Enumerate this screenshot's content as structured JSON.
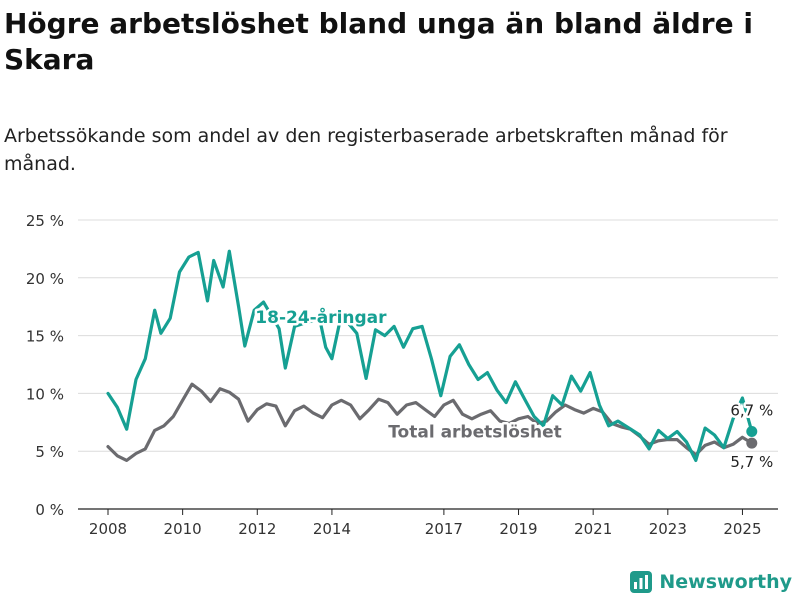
{
  "title": "Högre arbetslöshet bland unga än bland äldre i Skara",
  "subtitle": "Arbetssökande som andel av den registerbaserade arbetskraften månad för månad.",
  "brand": {
    "name": "Newsworthy",
    "icon": "newsworthy-logo-icon"
  },
  "colors": {
    "youth": "#16a093",
    "total": "#6b6b6f",
    "grid": "#dcdcdc",
    "axis": "#222222"
  },
  "chart_data": {
    "type": "line",
    "title": "Högre arbetslöshet bland unga än bland äldre i Skara",
    "subtitle": "Arbetssökande som andel av den registerbaserade arbetskraften månad för månad.",
    "xlim": [
      "2008-01",
      "2025-06"
    ],
    "ylim": [
      0,
      25
    ],
    "yticks": [
      0,
      5,
      10,
      15,
      20,
      25
    ],
    "ytick_labels": [
      "0 %",
      "5 %",
      "10 %",
      "15 %",
      "20 %",
      "25 %"
    ],
    "xticks": [
      "2008",
      "2010",
      "2012",
      "2014",
      "2017",
      "2019",
      "2021",
      "2023",
      "2025"
    ],
    "grid": true,
    "legend": "inline labels",
    "series": [
      {
        "name": "18-24-åringar",
        "color": "#16a093",
        "end_label": "6,7 %",
        "points": [
          [
            "2008-01",
            10.0
          ],
          [
            "2008-04",
            8.8
          ],
          [
            "2008-07",
            6.9
          ],
          [
            "2008-10",
            11.2
          ],
          [
            "2009-01",
            13.0
          ],
          [
            "2009-04",
            17.2
          ],
          [
            "2009-06",
            15.2
          ],
          [
            "2009-09",
            16.5
          ],
          [
            "2009-12",
            20.5
          ],
          [
            "2010-03",
            21.8
          ],
          [
            "2010-06",
            22.2
          ],
          [
            "2010-09",
            18.0
          ],
          [
            "2010-11",
            21.5
          ],
          [
            "2011-02",
            19.2
          ],
          [
            "2011-04",
            22.3
          ],
          [
            "2011-07",
            17.5
          ],
          [
            "2011-09",
            14.1
          ],
          [
            "2011-12",
            17.2
          ],
          [
            "2012-03",
            17.9
          ],
          [
            "2012-08",
            15.6
          ],
          [
            "2012-10",
            12.2
          ],
          [
            "2013-01",
            15.8
          ],
          [
            "2013-09",
            16.5
          ],
          [
            "2013-11",
            14.0
          ],
          [
            "2014-01",
            13.0
          ],
          [
            "2014-04",
            16.8
          ],
          [
            "2014-09",
            15.2
          ],
          [
            "2014-12",
            11.3
          ],
          [
            "2015-03",
            15.5
          ],
          [
            "2015-06",
            15.0
          ],
          [
            "2015-09",
            15.8
          ],
          [
            "2015-12",
            14.0
          ],
          [
            "2016-03",
            15.6
          ],
          [
            "2016-06",
            15.8
          ],
          [
            "2016-09",
            13.0
          ],
          [
            "2016-12",
            9.8
          ],
          [
            "2017-03",
            13.2
          ],
          [
            "2017-06",
            14.2
          ],
          [
            "2017-09",
            12.5
          ],
          [
            "2017-12",
            11.2
          ],
          [
            "2018-03",
            11.8
          ],
          [
            "2018-06",
            10.3
          ],
          [
            "2018-09",
            9.2
          ],
          [
            "2018-12",
            11.0
          ],
          [
            "2019-03",
            9.5
          ],
          [
            "2019-06",
            8.0
          ],
          [
            "2019-09",
            7.2
          ],
          [
            "2019-12",
            9.8
          ],
          [
            "2020-03",
            9.0
          ],
          [
            "2020-06",
            11.5
          ],
          [
            "2020-09",
            10.2
          ],
          [
            "2020-12",
            11.8
          ],
          [
            "2021-03",
            9.0
          ],
          [
            "2021-06",
            7.2
          ],
          [
            "2021-09",
            7.6
          ],
          [
            "2022-04",
            6.4
          ],
          [
            "2022-07",
            5.2
          ],
          [
            "2022-10",
            6.8
          ],
          [
            "2023-01",
            6.1
          ],
          [
            "2023-04",
            6.7
          ],
          [
            "2023-07",
            5.8
          ],
          [
            "2023-10",
            4.2
          ],
          [
            "2024-01",
            7.0
          ],
          [
            "2024-04",
            6.4
          ],
          [
            "2024-07",
            5.3
          ],
          [
            "2024-10",
            7.8
          ],
          [
            "2025-01",
            9.6
          ],
          [
            "2025-04",
            6.7
          ]
        ]
      },
      {
        "name": "Total arbetslöshet",
        "color": "#6b6b6f",
        "end_label": "5,7 %",
        "points": [
          [
            "2008-01",
            5.4
          ],
          [
            "2008-04",
            4.6
          ],
          [
            "2008-07",
            4.2
          ],
          [
            "2008-10",
            4.8
          ],
          [
            "2009-01",
            5.2
          ],
          [
            "2009-04",
            6.8
          ],
          [
            "2009-07",
            7.2
          ],
          [
            "2009-10",
            8.0
          ],
          [
            "2010-01",
            9.4
          ],
          [
            "2010-04",
            10.8
          ],
          [
            "2010-07",
            10.2
          ],
          [
            "2010-10",
            9.3
          ],
          [
            "2011-01",
            10.4
          ],
          [
            "2011-04",
            10.1
          ],
          [
            "2011-07",
            9.5
          ],
          [
            "2011-10",
            7.6
          ],
          [
            "2012-01",
            8.6
          ],
          [
            "2012-04",
            9.1
          ],
          [
            "2012-07",
            8.9
          ],
          [
            "2012-10",
            7.2
          ],
          [
            "2013-01",
            8.5
          ],
          [
            "2013-04",
            8.9
          ],
          [
            "2013-07",
            8.3
          ],
          [
            "2013-10",
            7.9
          ],
          [
            "2014-01",
            9.0
          ],
          [
            "2014-04",
            9.4
          ],
          [
            "2014-07",
            9.0
          ],
          [
            "2014-10",
            7.8
          ],
          [
            "2015-01",
            8.6
          ],
          [
            "2015-04",
            9.5
          ],
          [
            "2015-07",
            9.2
          ],
          [
            "2015-10",
            8.2
          ],
          [
            "2016-01",
            9.0
          ],
          [
            "2016-04",
            9.2
          ],
          [
            "2016-07",
            8.6
          ],
          [
            "2016-10",
            8.0
          ],
          [
            "2017-01",
            9.0
          ],
          [
            "2017-04",
            9.4
          ],
          [
            "2017-07",
            8.2
          ],
          [
            "2017-10",
            7.8
          ],
          [
            "2018-01",
            8.2
          ],
          [
            "2018-04",
            8.5
          ],
          [
            "2018-07",
            7.6
          ],
          [
            "2018-10",
            7.4
          ],
          [
            "2019-01",
            7.8
          ],
          [
            "2019-04",
            8.0
          ],
          [
            "2019-07",
            7.4
          ],
          [
            "2019-10",
            7.6
          ],
          [
            "2020-01",
            8.4
          ],
          [
            "2020-04",
            9.0
          ],
          [
            "2020-07",
            8.6
          ],
          [
            "2020-10",
            8.3
          ],
          [
            "2021-01",
            8.7
          ],
          [
            "2021-04",
            8.4
          ],
          [
            "2021-07",
            7.4
          ],
          [
            "2021-10",
            7.1
          ],
          [
            "2022-01",
            6.9
          ],
          [
            "2022-04",
            6.3
          ],
          [
            "2022-07",
            5.6
          ],
          [
            "2022-10",
            5.9
          ],
          [
            "2023-01",
            6.0
          ],
          [
            "2023-04",
            6.0
          ],
          [
            "2023-07",
            5.3
          ],
          [
            "2023-10",
            4.7
          ],
          [
            "2024-01",
            5.5
          ],
          [
            "2024-04",
            5.8
          ],
          [
            "2024-07",
            5.3
          ],
          [
            "2024-10",
            5.6
          ],
          [
            "2025-01",
            6.2
          ],
          [
            "2025-04",
            5.7
          ]
        ]
      }
    ]
  }
}
